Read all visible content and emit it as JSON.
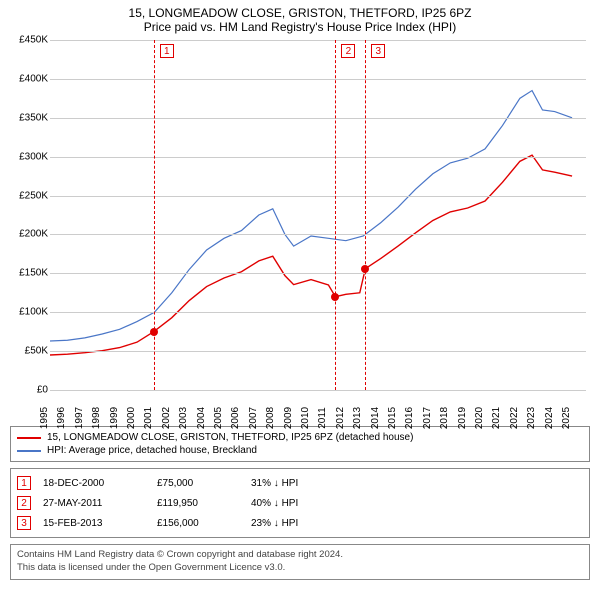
{
  "title": {
    "line1": "15, LONGMEADOW CLOSE, GRISTON, THETFORD, IP25 6PZ",
    "line2": "Price paid vs. HM Land Registry's House Price Index (HPI)"
  },
  "chart": {
    "type": "line",
    "background_color": "#ffffff",
    "grid_color": "#cccccc",
    "x": {
      "min": 1995,
      "max": 2025.8,
      "ticks": [
        1995,
        1996,
        1997,
        1998,
        1999,
        2000,
        2001,
        2002,
        2003,
        2004,
        2005,
        2006,
        2007,
        2008,
        2009,
        2010,
        2011,
        2012,
        2013,
        2014,
        2015,
        2016,
        2017,
        2018,
        2019,
        2020,
        2021,
        2022,
        2023,
        2024,
        2025
      ]
    },
    "y": {
      "min": 0,
      "max": 450000,
      "tick_step": 50000,
      "tick_prefix": "£",
      "tick_suffix": "K",
      "tick_divisor": 1000
    },
    "series": {
      "hpi": {
        "label": "HPI: Average price, detached house, Breckland",
        "color": "#4a76c7",
        "line_width": 1.2,
        "data": [
          [
            1995,
            63000
          ],
          [
            1996,
            64000
          ],
          [
            1997,
            67000
          ],
          [
            1998,
            72000
          ],
          [
            1999,
            78000
          ],
          [
            2000,
            88000
          ],
          [
            2001,
            100000
          ],
          [
            2002,
            125000
          ],
          [
            2003,
            155000
          ],
          [
            2004,
            180000
          ],
          [
            2005,
            195000
          ],
          [
            2006,
            205000
          ],
          [
            2007,
            225000
          ],
          [
            2007.8,
            233000
          ],
          [
            2008.5,
            200000
          ],
          [
            2009,
            185000
          ],
          [
            2010,
            198000
          ],
          [
            2011,
            195000
          ],
          [
            2012,
            192000
          ],
          [
            2013,
            198000
          ],
          [
            2014,
            215000
          ],
          [
            2015,
            235000
          ],
          [
            2016,
            258000
          ],
          [
            2017,
            278000
          ],
          [
            2018,
            292000
          ],
          [
            2019,
            298000
          ],
          [
            2020,
            310000
          ],
          [
            2021,
            340000
          ],
          [
            2022,
            375000
          ],
          [
            2022.7,
            385000
          ],
          [
            2023.3,
            360000
          ],
          [
            2024,
            358000
          ],
          [
            2025,
            350000
          ]
        ]
      },
      "property": {
        "label": "15, LONGMEADOW CLOSE, GRISTON, THETFORD, IP25 6PZ (detached house)",
        "color": "#e00000",
        "line_width": 1.4,
        "data": [
          [
            1995,
            45000
          ],
          [
            1996,
            46000
          ],
          [
            1997,
            48000
          ],
          [
            1998,
            50500
          ],
          [
            1999,
            54500
          ],
          [
            2000,
            61500
          ],
          [
            2000.96,
            75000
          ],
          [
            2002,
            93000
          ],
          [
            2003,
            115000
          ],
          [
            2004,
            133000
          ],
          [
            2005,
            144000
          ],
          [
            2006,
            152000
          ],
          [
            2007,
            166000
          ],
          [
            2007.8,
            172000
          ],
          [
            2008.5,
            147000
          ],
          [
            2009,
            135500
          ],
          [
            2010,
            142000
          ],
          [
            2011,
            135000
          ],
          [
            2011.4,
            119950
          ],
          [
            2012,
            123000
          ],
          [
            2012.8,
            125000
          ],
          [
            2013.12,
            156000
          ],
          [
            2014,
            169000
          ],
          [
            2015,
            185000
          ],
          [
            2016,
            202000
          ],
          [
            2017,
            218000
          ],
          [
            2018,
            229000
          ],
          [
            2019,
            234000
          ],
          [
            2020,
            243000
          ],
          [
            2021,
            267000
          ],
          [
            2022,
            294000
          ],
          [
            2022.7,
            302000
          ],
          [
            2023.3,
            283000
          ],
          [
            2024,
            280000
          ],
          [
            2025,
            275000
          ]
        ]
      }
    },
    "markers": [
      {
        "year": 2000.96,
        "value": 75000,
        "badge": "1"
      },
      {
        "year": 2011.4,
        "value": 119950,
        "badge": "2"
      },
      {
        "year": 2013.12,
        "value": 156000,
        "badge": "3"
      }
    ],
    "marker_line_color": "#e00000"
  },
  "legend": {
    "items": [
      {
        "color": "#e00000",
        "label_key": "chart.series.property.label"
      },
      {
        "color": "#4a76c7",
        "label_key": "chart.series.hpi.label"
      }
    ]
  },
  "sales": [
    {
      "badge": "1",
      "date": "18-DEC-2000",
      "price": "£75,000",
      "delta": "31% ↓ HPI"
    },
    {
      "badge": "2",
      "date": "27-MAY-2011",
      "price": "£119,950",
      "delta": "40% ↓ HPI"
    },
    {
      "badge": "3",
      "date": "15-FEB-2013",
      "price": "£156,000",
      "delta": "23% ↓ HPI"
    }
  ],
  "footer": {
    "line1": "Contains HM Land Registry data © Crown copyright and database right 2024.",
    "line2": "This data is licensed under the Open Government Licence v3.0."
  }
}
